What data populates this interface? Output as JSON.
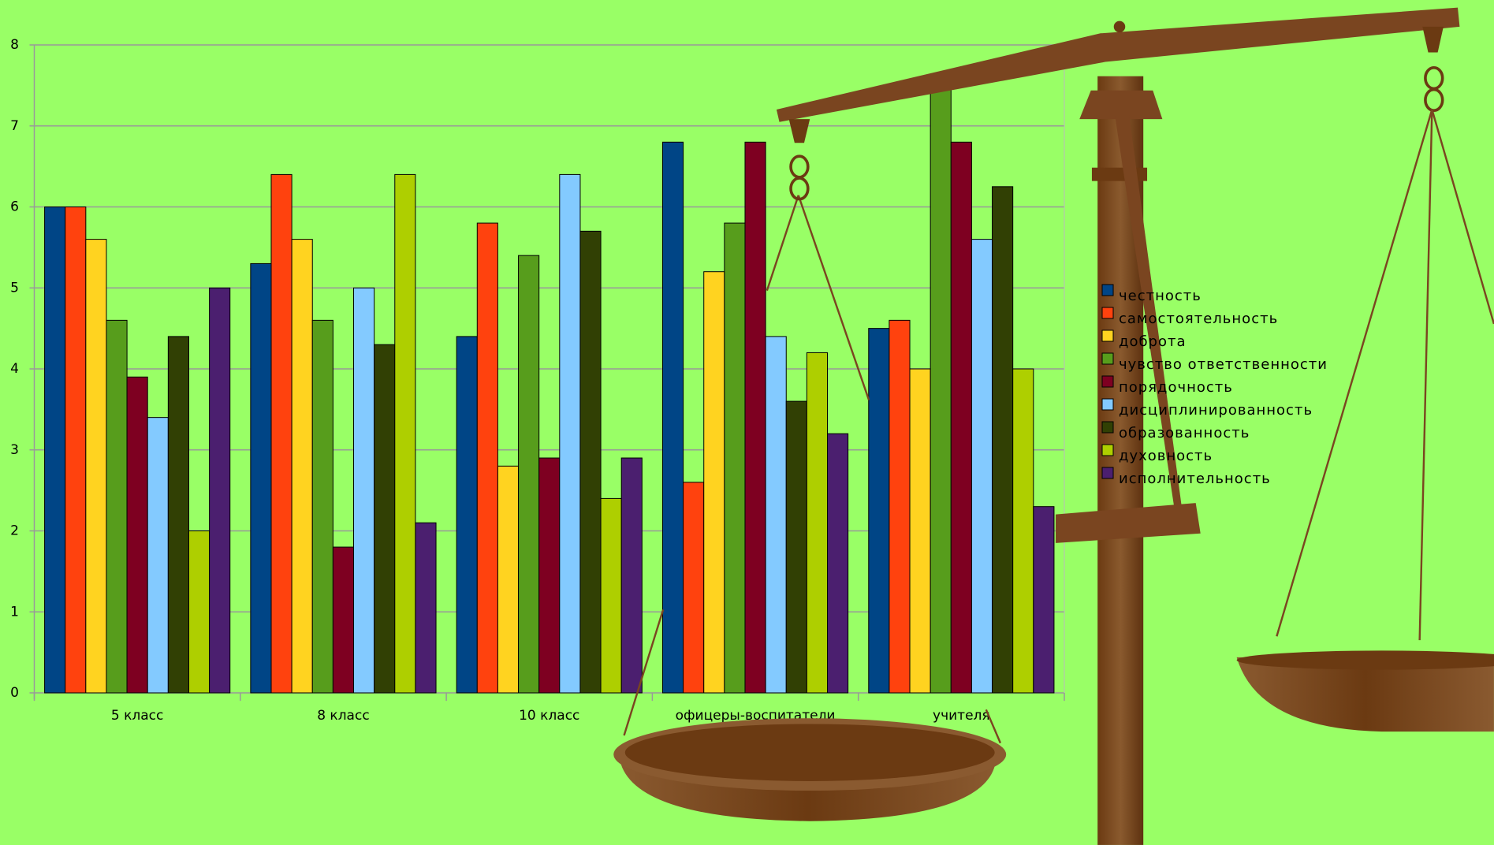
{
  "chart_data": {
    "type": "bar",
    "categories": [
      "5 класс",
      "8 класс",
      "10 класс",
      "офицеры-воспитатели",
      "учителя"
    ],
    "series": [
      {
        "name": "честность",
        "color": "#004586",
        "values": [
          6,
          5.3,
          4.4,
          6.8,
          4.5
        ]
      },
      {
        "name": "самостоятельность",
        "color": "#ff420e",
        "values": [
          6,
          6.4,
          5.8,
          2.6,
          4.6
        ]
      },
      {
        "name": "доброта",
        "color": "#ffd320",
        "values": [
          5.6,
          5.6,
          2.8,
          5.2,
          4
        ]
      },
      {
        "name": "чувство ответственности",
        "color": "#579d1c",
        "values": [
          4.6,
          4.6,
          5.4,
          5.8,
          7.6
        ]
      },
      {
        "name": "порядочность",
        "color": "#7e0021",
        "values": [
          3.9,
          1.8,
          2.9,
          6.8,
          6.8
        ]
      },
      {
        "name": "дисциплинированность",
        "color": "#83caff",
        "values": [
          3.4,
          5,
          6.4,
          4.4,
          5.6
        ]
      },
      {
        "name": "образованность",
        "color": "#314004",
        "values": [
          4.4,
          4.3,
          5.7,
          3.6,
          6.25
        ]
      },
      {
        "name": "духовность",
        "color": "#aecf00",
        "values": [
          2,
          6.4,
          2.4,
          4.2,
          4
        ]
      },
      {
        "name": "исполнительность",
        "color": "#4b1f6f",
        "values": [
          5,
          2.1,
          2.9,
          3.2,
          2.3
        ]
      }
    ],
    "ylim": [
      0,
      8
    ],
    "yticks": [
      0,
      1,
      2,
      3,
      4,
      5,
      6,
      7,
      8
    ],
    "grid": true,
    "legend": "right"
  }
}
